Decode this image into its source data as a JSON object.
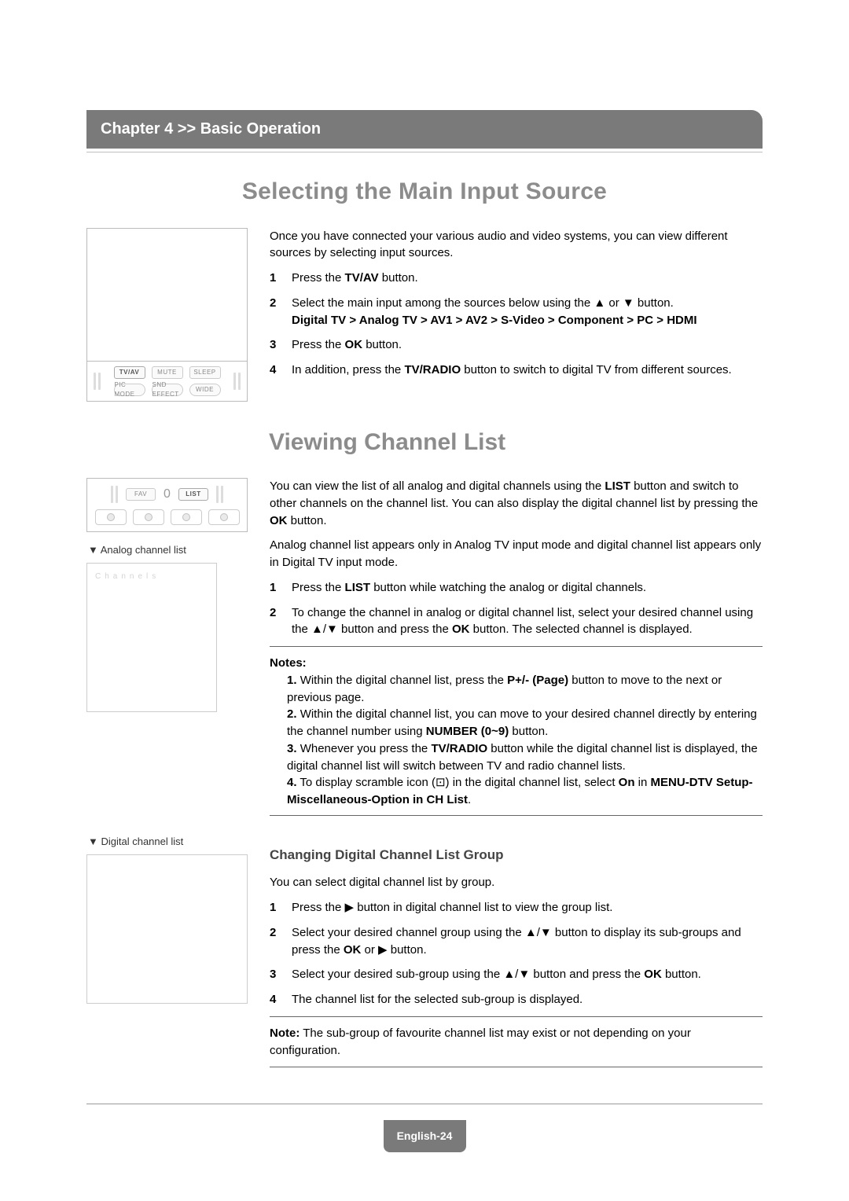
{
  "chapter_bar": "Chapter 4 >> Basic Operation",
  "section1": {
    "title": "Selecting the Main Input Source",
    "intro": "Once you have connected your various audio and video systems, you can view different sources by selecting input sources.",
    "steps": [
      {
        "n": "1",
        "html": "Press the <b>TV/AV</b> button."
      },
      {
        "n": "2",
        "html": "Select the main input among the sources below using the ▲ or ▼ button.<br><b>Digital TV &gt; Analog TV &gt; AV1 &gt; AV2 &gt; S-Video &gt; Component &gt; PC &gt; HDMI</b>"
      },
      {
        "n": "3",
        "html": "Press the <b>OK</b> button."
      },
      {
        "n": "4",
        "html": "In addition, press the <b>TV/RADIO</b> button to switch to digital TV from different sources."
      }
    ],
    "remote": {
      "row1": [
        "TV/AV",
        "MUTE",
        "SLEEP"
      ],
      "row2": [
        "PIC MODE",
        "SND EFFECT",
        "WIDE"
      ]
    }
  },
  "section2": {
    "title": "Viewing Channel List",
    "small_remote": {
      "fav": "FAV",
      "zero": "0",
      "list": "LIST"
    },
    "intro1": "You can view the list of all analog and digital channels using the <b>LIST</b> button and switch to other channels on the channel list. You can also display the digital channel list by pressing the <b>OK</b> button.",
    "intro2": "Analog channel list appears only in Analog TV input mode and digital channel list appears only in Digital TV input mode.",
    "steps": [
      {
        "n": "1",
        "html": "Press the <b>LIST</b> button while watching the analog or digital channels."
      },
      {
        "n": "2",
        "html": "To change the channel in analog or digital channel list, select your desired channel using the ▲/▼ button and press the <b>OK</b> button. The selected channel is displayed."
      }
    ],
    "caption_analog": "▼ Analog channel list",
    "channels_label": "Channels",
    "notes_title": "Notes:",
    "notes": [
      "Within the digital channel list, press the <b>P+/- (Page)</b> button to move to the next or previous page.",
      "Within the digital channel list, you can move to your desired channel directly by entering the channel number using <b>NUMBER (0~9)</b> button.",
      "Whenever you press the <b>TV/RADIO</b> button while the digital channel list is displayed, the digital channel list will switch between TV and radio channel lists.",
      "To display scramble icon (⊡) in the digital channel list, select <b>On</b> in <b>MENU-DTV Setup-Miscellaneous-Option in CH List</b>."
    ],
    "caption_digital": "▼ Digital channel list",
    "sub_heading": "Changing Digital Channel List Group",
    "sub_intro": "You can select digital channel list by group.",
    "sub_steps": [
      {
        "n": "1",
        "html": "Press the ▶ button in digital channel list to view the group list."
      },
      {
        "n": "2",
        "html": "Select your desired channel group using the ▲/▼ button to display its sub-groups and press the <b>OK</b> or ▶ button."
      },
      {
        "n": "3",
        "html": "Select your desired sub-group using the ▲/▼ button and press the <b>OK</b> button."
      },
      {
        "n": "4",
        "html": "The channel list for the selected sub-group is displayed."
      }
    ],
    "sub_note": "<b>Note:</b> The sub-group of favourite channel list may exist or not depending on your configuration."
  },
  "page_badge": "English-24",
  "colors": {
    "bar_bg": "#7a7a7a",
    "title_gray": "#8c8c8c",
    "border": "#bbbbbb",
    "hr": "#666666"
  }
}
